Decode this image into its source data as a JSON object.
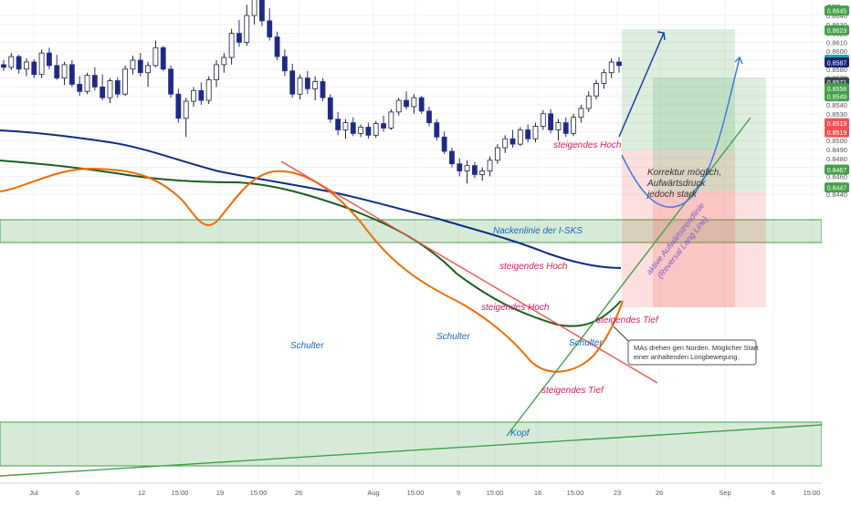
{
  "chart_data": {
    "type": "candlestick",
    "currency": "GBP",
    "y_axis_ticks": [
      "0.8640",
      "0.8630",
      "0.8620",
      "0.8610",
      "0.8600",
      "0.8590",
      "0.8580",
      "0.8570",
      "0.8560",
      "0.8550",
      "0.8540",
      "0.8530",
      "0.8520",
      "0.8510",
      "0.8500",
      "0.8490",
      "0.8480",
      "0.8470",
      "0.8460",
      "0.8450",
      "0.8440"
    ],
    "x_axis_ticks": [
      "Jul",
      "6",
      "12",
      "15:00",
      "19",
      "15:00",
      "26",
      "Aug",
      "15:00",
      "9",
      "15:00",
      "16",
      "15:00",
      "23",
      "26",
      "Sep",
      "6",
      "15:00"
    ],
    "price_badges": [
      {
        "label": "0.8645",
        "color": "#43a047"
      },
      {
        "label": "0.8623",
        "color": "#43a047"
      },
      {
        "label": "0.8590",
        "color": "#26a69a"
      },
      {
        "label": "0.8587",
        "color": "#1a237e"
      },
      {
        "label": "0.8571",
        "color": "#37474f"
      },
      {
        "label": "0.8558",
        "color": "#43a047"
      },
      {
        "label": "0.8549",
        "color": "#43a047"
      },
      {
        "label": "0.8519",
        "color": "#ef5350"
      },
      {
        "label": "0.8519",
        "color": "#ef5350"
      },
      {
        "label": "0.8467",
        "color": "#43a047"
      },
      {
        "label": "0.8447",
        "color": "#43a047"
      }
    ],
    "annotations": {
      "neckline": "Nackenlinie der I-SKS",
      "left_shoulder": "Schulter",
      "head": "Kopf",
      "right_shoulder": "Schulter",
      "higher_high_1": "steigendes Hoch",
      "higher_high_2": "steigendes Hoch",
      "higher_high_3": "steigendes Hoch",
      "higher_low_1": "steigendes Tief",
      "higher_low_2": "steigendes Tief",
      "trendline_label_1": "aktive Aufwärtstrendlinie",
      "trendline_label_2": "(Reversal Long Line)",
      "correction_1": "Korrektur möglich,",
      "correction_2": "Aufwärtsdruck",
      "correction_3": "jedoch stark",
      "callout_1": "MAs drehen gen Norden. Möglicher Start",
      "callout_2": "einer anhaltenden Longbewegung."
    },
    "candles": [
      [
        0.8585,
        0.859,
        0.8578,
        0.8582
      ],
      [
        0.8582,
        0.8598,
        0.8579,
        0.8594
      ],
      [
        0.8594,
        0.8596,
        0.8575,
        0.858
      ],
      [
        0.858,
        0.8592,
        0.8572,
        0.8588
      ],
      [
        0.8588,
        0.8591,
        0.857,
        0.8574
      ],
      [
        0.8574,
        0.8602,
        0.857,
        0.8598
      ],
      [
        0.8598,
        0.8604,
        0.858,
        0.8584
      ],
      [
        0.8584,
        0.8596,
        0.8568,
        0.857
      ],
      [
        0.857,
        0.8588,
        0.8562,
        0.8585
      ],
      [
        0.8585,
        0.859,
        0.856,
        0.8563
      ],
      [
        0.8563,
        0.8572,
        0.855,
        0.8555
      ],
      [
        0.8555,
        0.8576,
        0.8552,
        0.8573
      ],
      [
        0.8573,
        0.8582,
        0.8556,
        0.856
      ],
      [
        0.856,
        0.8574,
        0.8545,
        0.8548
      ],
      [
        0.8548,
        0.857,
        0.8542,
        0.8567
      ],
      [
        0.8567,
        0.8571,
        0.8548,
        0.8552
      ],
      [
        0.8552,
        0.8584,
        0.855,
        0.858
      ],
      [
        0.858,
        0.8595,
        0.8574,
        0.859
      ],
      [
        0.859,
        0.8598,
        0.8572,
        0.8576
      ],
      [
        0.8576,
        0.8588,
        0.856,
        0.8584
      ],
      [
        0.8584,
        0.8612,
        0.8582,
        0.8604
      ],
      [
        0.8604,
        0.8606,
        0.8578,
        0.858
      ],
      [
        0.858,
        0.8584,
        0.8548,
        0.8552
      ],
      [
        0.8552,
        0.8558,
        0.852,
        0.8525
      ],
      [
        0.8525,
        0.8548,
        0.8504,
        0.8544
      ],
      [
        0.8544,
        0.856,
        0.8538,
        0.8556
      ],
      [
        0.8556,
        0.8565,
        0.854,
        0.8545
      ],
      [
        0.8545,
        0.8572,
        0.8541,
        0.8568
      ],
      [
        0.8568,
        0.859,
        0.856,
        0.8585
      ],
      [
        0.8585,
        0.8598,
        0.8576,
        0.8593
      ],
      [
        0.8593,
        0.8625,
        0.8585,
        0.862
      ],
      [
        0.862,
        0.8635,
        0.8605,
        0.861
      ],
      [
        0.861,
        0.8652,
        0.8606,
        0.864
      ],
      [
        0.864,
        0.8672,
        0.863,
        0.8664
      ],
      [
        0.8664,
        0.867,
        0.8628,
        0.8634
      ],
      [
        0.8634,
        0.8648,
        0.8612,
        0.8616
      ],
      [
        0.8616,
        0.8622,
        0.859,
        0.8594
      ],
      [
        0.8594,
        0.8602,
        0.8572,
        0.8578
      ],
      [
        0.8578,
        0.8586,
        0.8548,
        0.8552
      ],
      [
        0.8552,
        0.8574,
        0.8546,
        0.857
      ],
      [
        0.857,
        0.8578,
        0.8552,
        0.8558
      ],
      [
        0.8558,
        0.8572,
        0.8545,
        0.8566
      ],
      [
        0.8566,
        0.857,
        0.8544,
        0.8548
      ],
      [
        0.8548,
        0.8552,
        0.852,
        0.8524
      ],
      [
        0.8524,
        0.8532,
        0.8506,
        0.8512
      ],
      [
        0.8512,
        0.8524,
        0.8502,
        0.852
      ],
      [
        0.852,
        0.8526,
        0.8505,
        0.8508
      ],
      [
        0.8508,
        0.8518,
        0.8504,
        0.8515
      ],
      [
        0.8515,
        0.852,
        0.8502,
        0.8506
      ],
      [
        0.8506,
        0.8522,
        0.8503,
        0.8519
      ],
      [
        0.8519,
        0.8528,
        0.851,
        0.8514
      ],
      [
        0.8514,
        0.8535,
        0.8512,
        0.8532
      ],
      [
        0.8532,
        0.8548,
        0.8528,
        0.8545
      ],
      [
        0.8545,
        0.8555,
        0.8535,
        0.8538
      ],
      [
        0.8538,
        0.8552,
        0.853,
        0.8548
      ],
      [
        0.8548,
        0.855,
        0.853,
        0.8533
      ],
      [
        0.8533,
        0.8538,
        0.8516,
        0.852
      ],
      [
        0.852,
        0.8524,
        0.85,
        0.8504
      ],
      [
        0.8504,
        0.851,
        0.8485,
        0.8488
      ],
      [
        0.8488,
        0.8492,
        0.847,
        0.8474
      ],
      [
        0.8474,
        0.848,
        0.846,
        0.8466
      ],
      [
        0.8466,
        0.8478,
        0.8452,
        0.8472
      ],
      [
        0.8472,
        0.8476,
        0.8458,
        0.8462
      ],
      [
        0.8462,
        0.847,
        0.8455,
        0.8466
      ],
      [
        0.8466,
        0.8482,
        0.846,
        0.8478
      ],
      [
        0.8478,
        0.8496,
        0.8474,
        0.8492
      ],
      [
        0.8492,
        0.8506,
        0.8486,
        0.8502
      ],
      [
        0.8502,
        0.8512,
        0.8492,
        0.8496
      ],
      [
        0.8496,
        0.8515,
        0.8494,
        0.8512
      ],
      [
        0.8512,
        0.8518,
        0.8498,
        0.8502
      ],
      [
        0.8502,
        0.852,
        0.8498,
        0.8516
      ],
      [
        0.8516,
        0.8534,
        0.8512,
        0.853
      ],
      [
        0.853,
        0.8535,
        0.8508,
        0.8512
      ],
      [
        0.8512,
        0.8524,
        0.85,
        0.852
      ],
      [
        0.852,
        0.8526,
        0.8504,
        0.8508
      ],
      [
        0.8508,
        0.853,
        0.8505,
        0.8526
      ],
      [
        0.8526,
        0.854,
        0.852,
        0.8536
      ],
      [
        0.8536,
        0.8555,
        0.8532,
        0.855
      ],
      [
        0.855,
        0.8568,
        0.8546,
        0.8564
      ],
      [
        0.8564,
        0.858,
        0.8558,
        0.8576
      ],
      [
        0.8576,
        0.8592,
        0.857,
        0.8588
      ],
      [
        0.8588,
        0.8593,
        0.8576,
        0.8584
      ]
    ],
    "x_axis_start": "Jul",
    "ylim": [
      0.844,
      0.866
    ]
  }
}
